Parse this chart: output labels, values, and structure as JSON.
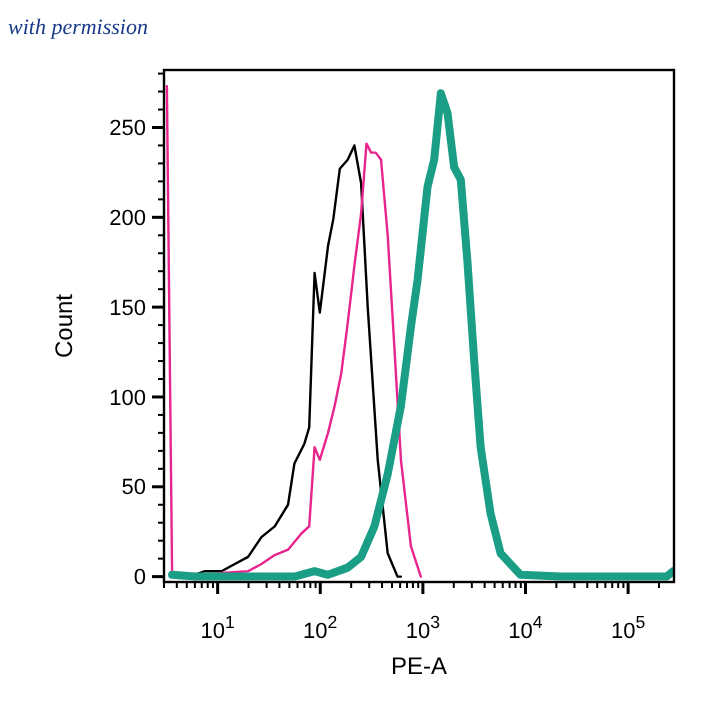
{
  "chart_data": {
    "type": "line",
    "xlabel": "PE-A",
    "ylabel": "Count",
    "log": "x",
    "annotations": [
      "with permission"
    ],
    "xlim": [
      3,
      280000
    ],
    "ylim": [
      -3,
      282
    ],
    "xticks": [
      {
        "value": 3,
        "label": null
      },
      {
        "value": 4,
        "label": null
      },
      {
        "value": 5,
        "label": null
      },
      {
        "value": 6,
        "label": null
      },
      {
        "value": 7,
        "label": null
      },
      {
        "value": 8,
        "label": null
      },
      {
        "value": 9,
        "label": null
      },
      {
        "value": 10,
        "label": "10$^{1}$"
      },
      {
        "value": 20,
        "label": null
      },
      {
        "value": 30,
        "label": null
      },
      {
        "value": 40,
        "label": null
      },
      {
        "value": 50,
        "label": null
      },
      {
        "value": 60,
        "label": null
      },
      {
        "value": 70,
        "label": null
      },
      {
        "value": 80,
        "label": null
      },
      {
        "value": 90,
        "label": null
      },
      {
        "value": 100,
        "label": "10$^{2}$"
      },
      {
        "value": 200,
        "label": null
      },
      {
        "value": 300,
        "label": null
      },
      {
        "value": 400,
        "label": null
      },
      {
        "value": 500,
        "label": null
      },
      {
        "value": 600,
        "label": null
      },
      {
        "value": 700,
        "label": null
      },
      {
        "value": 800,
        "label": null
      },
      {
        "value": 900,
        "label": null
      },
      {
        "value": 1000,
        "label": "10$^{3}$"
      },
      {
        "value": 2000,
        "label": null
      },
      {
        "value": 3000,
        "label": null
      },
      {
        "value": 4000,
        "label": null
      },
      {
        "value": 5000,
        "label": null
      },
      {
        "value": 6000,
        "label": null
      },
      {
        "value": 7000,
        "label": null
      },
      {
        "value": 8000,
        "label": null
      },
      {
        "value": 9000,
        "label": null
      },
      {
        "value": 10000,
        "label": "10$^{4}$"
      },
      {
        "value": 20000,
        "label": null
      },
      {
        "value": 30000,
        "label": null
      },
      {
        "value": 40000,
        "label": null
      },
      {
        "value": 50000,
        "label": null
      },
      {
        "value": 60000,
        "label": null
      },
      {
        "value": 70000,
        "label": null
      },
      {
        "value": 80000,
        "label": null
      },
      {
        "value": 90000,
        "label": null
      },
      {
        "value": 100000,
        "label": "10$^{5}$"
      },
      {
        "value": 200000,
        "label": null
      }
    ],
    "yticks": [
      0,
      {
        "value": 10,
        "label": null
      },
      {
        "value": 20,
        "label": null
      },
      {
        "value": 30,
        "label": null
      },
      {
        "value": 40,
        "label": null
      },
      50,
      {
        "value": 60,
        "label": null
      },
      {
        "value": 70,
        "label": null
      },
      {
        "value": 80,
        "label": null
      },
      {
        "value": 90,
        "label": null
      },
      100,
      {
        "value": 110,
        "label": null
      },
      {
        "value": 120,
        "label": null
      },
      {
        "value": 130,
        "label": null
      },
      {
        "value": 140,
        "label": null
      },
      150,
      {
        "value": 160,
        "label": null
      },
      {
        "value": 170,
        "label": null
      },
      {
        "value": 180,
        "label": null
      },
      {
        "value": 190,
        "label": null
      },
      200,
      {
        "value": 210,
        "label": null
      },
      {
        "value": 220,
        "label": null
      },
      {
        "value": 230,
        "label": null
      },
      {
        "value": 240,
        "label": null
      },
      250,
      {
        "value": 260,
        "label": null
      },
      {
        "value": 270,
        "label": null
      },
      {
        "value": 280,
        "label": null
      }
    ],
    "grid": false,
    "marker": "none",
    "line_style": "solid",
    "series": [
      {
        "color": "#000000",
        "x": [
          3.85,
          6,
          7.5,
          10.9,
          14.7,
          19.8,
          26.7,
          36,
          48.5,
          56,
          70,
          78,
          88,
          99,
          119,
          134,
          155,
          185,
          215,
          250,
          290,
          363,
          454,
          566,
          610
        ],
        "values": [
          0,
          1,
          3,
          3,
          7,
          11,
          22,
          28,
          40,
          63,
          74,
          83,
          169,
          147,
          184,
          199,
          227,
          232,
          240,
          219,
          150,
          65,
          13,
          0,
          0
        ]
      },
      {
        "color": "#e8258e",
        "x": [
          3.2,
          3.6,
          6,
          10.9,
          19.8,
          26.7,
          36,
          48.5,
          65.5,
          78,
          88,
          99,
          119,
          138,
          160,
          185,
          215,
          250,
          282,
          313,
          347,
          391,
          454,
          527,
          611,
          764,
          955
        ],
        "values": [
          273,
          0,
          0,
          2,
          3,
          7,
          12,
          15,
          24,
          28,
          72,
          65,
          80,
          95,
          113,
          141,
          173,
          202,
          241,
          236,
          236,
          232,
          190,
          128,
          65,
          17,
          0
        ]
      },
      {
        "color": "#1a9e86",
        "x": [
          3.6,
          6,
          56,
          88,
          119,
          185,
          250,
          337,
          454,
          611,
          764,
          887,
          1110,
          1288,
          1496,
          1738,
          2015,
          2340,
          2713,
          3155,
          3656,
          4571,
          5715,
          8930,
          21900,
          237000,
          275000
        ],
        "values": [
          1,
          0,
          0,
          3,
          1,
          5,
          11,
          28,
          57,
          95,
          139,
          165,
          217,
          232,
          269,
          258,
          228,
          221,
          176,
          121,
          72,
          35,
          13,
          1,
          0,
          0,
          3
        ]
      }
    ]
  }
}
